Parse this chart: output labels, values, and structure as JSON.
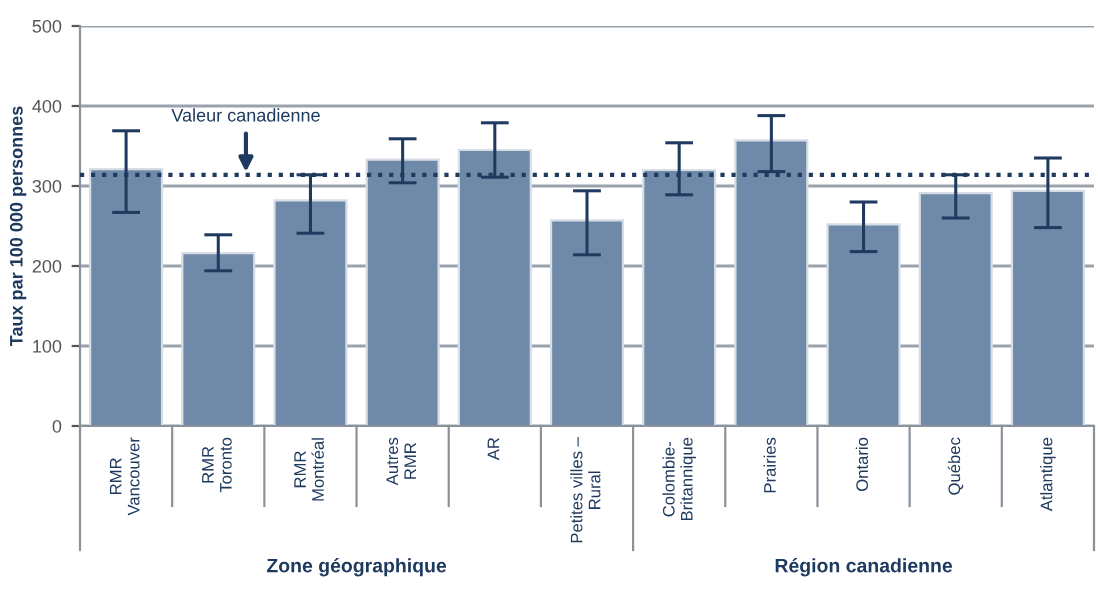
{
  "chart_data": {
    "type": "bar",
    "ylabel": "Taux par 100 000 personnes",
    "categories": [
      "RMR\nVancouver",
      "RMR\nToronto",
      "RMR\nMontréal",
      "Autres\nRMR",
      "AR",
      "Petites villes –\nRural",
      "Colombie-\nBritannique",
      "Prairies",
      "Ontario",
      "Québec",
      "Atlantique"
    ],
    "values": [
      321,
      216,
      282,
      333,
      345,
      257,
      320,
      357,
      252,
      291,
      294
    ],
    "errors": [
      [
        267,
        369
      ],
      [
        194,
        239
      ],
      [
        241,
        314
      ],
      [
        304,
        359
      ],
      [
        311,
        379
      ],
      [
        214,
        294
      ],
      [
        289,
        354
      ],
      [
        318,
        388
      ],
      [
        218,
        280
      ],
      [
        260,
        314
      ],
      [
        248,
        335
      ]
    ],
    "color": "#6f8aa8",
    "ylim": [
      0,
      500
    ],
    "yticks": [
      0,
      100,
      200,
      300,
      400,
      500
    ],
    "grid": "y",
    "ref_lines": [
      {
        "axis": "y",
        "value": 314,
        "label": "Valeur canadienne",
        "color": "#1f3a5f",
        "line_style": "dotted"
      }
    ],
    "annotations": [
      "Zone géographique",
      "Région canadienne"
    ]
  }
}
